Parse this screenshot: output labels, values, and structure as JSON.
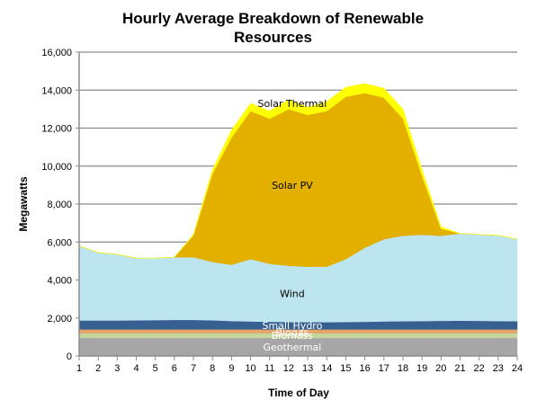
{
  "chart_data": {
    "type": "area",
    "stacked": true,
    "title_lines": [
      "Hourly Average Breakdown of Renewable",
      "Resources"
    ],
    "title": "Hourly Average Breakdown of Renewable Resources",
    "xlabel": "Time of Day",
    "ylabel": "Megawatts",
    "x": [
      1,
      2,
      3,
      4,
      5,
      6,
      7,
      8,
      9,
      10,
      11,
      12,
      13,
      14,
      15,
      16,
      17,
      18,
      19,
      20,
      21,
      22,
      23,
      24
    ],
    "xticks": [
      "1",
      "2",
      "3",
      "4",
      "5",
      "6",
      "7",
      "8",
      "9",
      "10",
      "11",
      "12",
      "13",
      "14",
      "15",
      "16",
      "17",
      "18",
      "19",
      "20",
      "21",
      "22",
      "23",
      "24"
    ],
    "ylim": [
      0,
      16000
    ],
    "yticks": [
      "0",
      "2,000",
      "4,000",
      "6,000",
      "8,000",
      "10,000",
      "12,000",
      "14,000",
      "16,000"
    ],
    "ytick_values": [
      0,
      2000,
      4000,
      6000,
      8000,
      10000,
      12000,
      14000,
      16000
    ],
    "grid": true,
    "legend": "inline-labels",
    "series": [
      {
        "name": "Geothermal",
        "color": "#a6a6a6",
        "label_color": "#ffffff",
        "values": [
          950,
          950,
          950,
          950,
          950,
          950,
          950,
          950,
          950,
          950,
          950,
          950,
          950,
          950,
          950,
          950,
          950,
          950,
          950,
          950,
          950,
          950,
          950,
          950
        ]
      },
      {
        "name": "Biomass",
        "color": "#c4d79b",
        "label_color": "#ffffff",
        "values": [
          250,
          250,
          250,
          250,
          250,
          250,
          250,
          250,
          250,
          250,
          250,
          250,
          250,
          250,
          250,
          250,
          250,
          250,
          250,
          250,
          250,
          250,
          250,
          250
        ]
      },
      {
        "name": "Biogas",
        "color": "#e6a36a",
        "label_color": "#ffffff",
        "values": [
          200,
          200,
          200,
          200,
          200,
          200,
          200,
          200,
          200,
          200,
          200,
          200,
          200,
          200,
          200,
          200,
          200,
          200,
          200,
          200,
          200,
          200,
          200,
          200
        ]
      },
      {
        "name": "Small Hydro",
        "color": "#376092",
        "label_color": "#ffffff",
        "values": [
          470,
          470,
          470,
          480,
          490,
          500,
          500,
          480,
          440,
          420,
          400,
          390,
          380,
          380,
          390,
          400,
          420,
          430,
          440,
          450,
          460,
          450,
          440,
          430
        ]
      },
      {
        "name": "Wind",
        "color": "#bde5f0",
        "label_color": "#000000",
        "values": [
          3930,
          3580,
          3480,
          3270,
          3260,
          3300,
          3300,
          3070,
          2960,
          3280,
          3050,
          2960,
          2920,
          2920,
          3310,
          3900,
          4330,
          4500,
          4540,
          4480,
          4590,
          4550,
          4510,
          4320
        ]
      },
      {
        "name": "Solar PV",
        "color": "#e3b000",
        "label_color": "#000000",
        "values": [
          0,
          0,
          0,
          0,
          0,
          0,
          1150,
          4650,
          6700,
          7800,
          7650,
          8250,
          8000,
          8200,
          8550,
          8150,
          7450,
          6170,
          3120,
          370,
          0,
          0,
          0,
          0
        ]
      },
      {
        "name": "Solar Thermal",
        "color": "#ffff00",
        "label_color": "#000000",
        "values": [
          0,
          0,
          0,
          0,
          0,
          0,
          50,
          200,
          400,
          400,
          400,
          500,
          400,
          500,
          500,
          500,
          500,
          500,
          300,
          100,
          0,
          0,
          0,
          0
        ]
      }
    ]
  }
}
